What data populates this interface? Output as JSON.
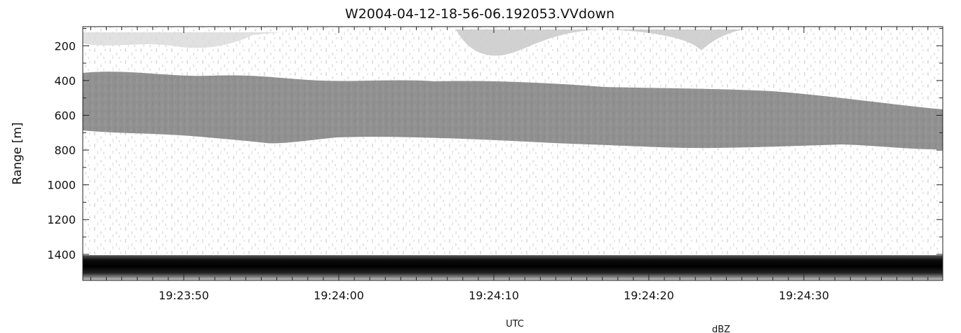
{
  "chart_data": {
    "type": "heatmap",
    "title": "W2004-04-12-18-56-06.192053.VVdown",
    "xlabel": "UTC",
    "ylabel": "Range [m]",
    "colorbar_label": "dBZ",
    "x_ticks": [
      "19:23:50",
      "19:24:00",
      "19:24:10",
      "19:24:20",
      "19:24:30"
    ],
    "y_ticks": [
      200,
      400,
      600,
      800,
      1000,
      1200,
      1400
    ],
    "ylim": [
      1550,
      90
    ],
    "y_reversed": true,
    "grid": false,
    "colormap": "grayscale",
    "colors": {
      "background": "#ffffff",
      "ink": "#111111",
      "layer": "#8f8f8f",
      "band": "#0c0c0c"
    },
    "features": [
      {
        "name": "upper-echo-layer",
        "range_top_left": 360,
        "range_bottom_left": 690,
        "range_top_right": 560,
        "range_bottom_right": 800
      },
      {
        "name": "lower-strong-band",
        "range_top": 1415,
        "range_bottom": 1540
      }
    ]
  }
}
